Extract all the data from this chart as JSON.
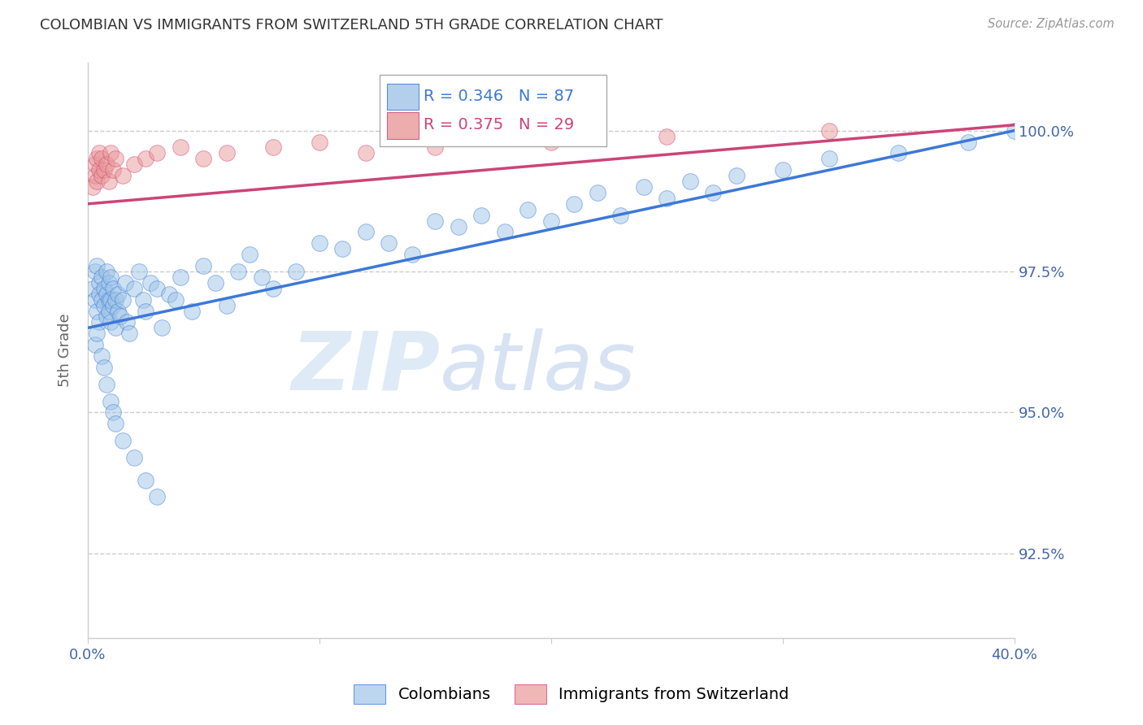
{
  "title": "COLOMBIAN VS IMMIGRANTS FROM SWITZERLAND 5TH GRADE CORRELATION CHART",
  "source": "Source: ZipAtlas.com",
  "ylabel": "5th Grade",
  "xlim": [
    0.0,
    40.0
  ],
  "ylim": [
    91.0,
    101.2
  ],
  "yticks": [
    92.5,
    95.0,
    97.5,
    100.0
  ],
  "ytick_labels": [
    "92.5%",
    "95.0%",
    "97.5%",
    "100.0%"
  ],
  "blue_R": 0.346,
  "blue_N": 87,
  "pink_R": 0.375,
  "pink_N": 29,
  "blue_color": "#9fc5e8",
  "pink_color": "#ea9999",
  "blue_line_color": "#3c78d8",
  "pink_line_color": "#cc4477",
  "watermark_zip": "ZIP",
  "watermark_atlas": "atlas",
  "legend_colombians": "Colombians",
  "legend_swiss": "Immigrants from Switzerland",
  "blue_scatter_x": [
    0.2,
    0.3,
    0.3,
    0.4,
    0.4,
    0.5,
    0.5,
    0.5,
    0.6,
    0.6,
    0.7,
    0.7,
    0.8,
    0.8,
    0.8,
    0.9,
    0.9,
    0.9,
    1.0,
    1.0,
    1.0,
    1.1,
    1.1,
    1.2,
    1.2,
    1.3,
    1.3,
    1.4,
    1.5,
    1.6,
    1.7,
    1.8,
    2.0,
    2.2,
    2.4,
    2.5,
    2.7,
    3.0,
    3.2,
    3.5,
    3.8,
    4.0,
    4.5,
    5.0,
    5.5,
    6.0,
    6.5,
    7.0,
    7.5,
    8.0,
    9.0,
    10.0,
    11.0,
    12.0,
    13.0,
    14.0,
    15.0,
    16.0,
    17.0,
    18.0,
    19.0,
    20.0,
    21.0,
    22.0,
    23.0,
    24.0,
    25.0,
    26.0,
    27.0,
    28.0,
    30.0,
    32.0,
    35.0,
    38.0,
    40.0,
    0.3,
    0.4,
    0.6,
    0.7,
    0.8,
    1.0,
    1.1,
    1.2,
    1.5,
    2.0,
    2.5,
    3.0
  ],
  "blue_scatter_y": [
    97.2,
    97.5,
    97.0,
    97.6,
    96.8,
    97.3,
    97.1,
    96.6,
    97.4,
    97.0,
    97.2,
    96.9,
    97.1,
    96.7,
    97.5,
    97.3,
    97.0,
    96.8,
    97.0,
    96.6,
    97.4,
    97.2,
    96.9,
    97.0,
    96.5,
    96.8,
    97.1,
    96.7,
    97.0,
    97.3,
    96.6,
    96.4,
    97.2,
    97.5,
    97.0,
    96.8,
    97.3,
    97.2,
    96.5,
    97.1,
    97.0,
    97.4,
    96.8,
    97.6,
    97.3,
    96.9,
    97.5,
    97.8,
    97.4,
    97.2,
    97.5,
    98.0,
    97.9,
    98.2,
    98.0,
    97.8,
    98.4,
    98.3,
    98.5,
    98.2,
    98.6,
    98.4,
    98.7,
    98.9,
    98.5,
    99.0,
    98.8,
    99.1,
    98.9,
    99.2,
    99.3,
    99.5,
    99.6,
    99.8,
    100.0,
    96.2,
    96.4,
    96.0,
    95.8,
    95.5,
    95.2,
    95.0,
    94.8,
    94.5,
    94.2,
    93.8,
    93.5
  ],
  "pink_scatter_x": [
    0.2,
    0.3,
    0.3,
    0.4,
    0.4,
    0.5,
    0.5,
    0.6,
    0.6,
    0.7,
    0.8,
    0.9,
    1.0,
    1.1,
    1.2,
    1.5,
    2.0,
    2.5,
    3.0,
    4.0,
    5.0,
    6.0,
    8.0,
    10.0,
    12.0,
    15.0,
    20.0,
    25.0,
    32.0
  ],
  "pink_scatter_y": [
    99.0,
    99.2,
    99.4,
    99.1,
    99.5,
    99.3,
    99.6,
    99.2,
    99.5,
    99.3,
    99.4,
    99.1,
    99.6,
    99.3,
    99.5,
    99.2,
    99.4,
    99.5,
    99.6,
    99.7,
    99.5,
    99.6,
    99.7,
    99.8,
    99.6,
    99.7,
    99.8,
    99.9,
    100.0
  ]
}
